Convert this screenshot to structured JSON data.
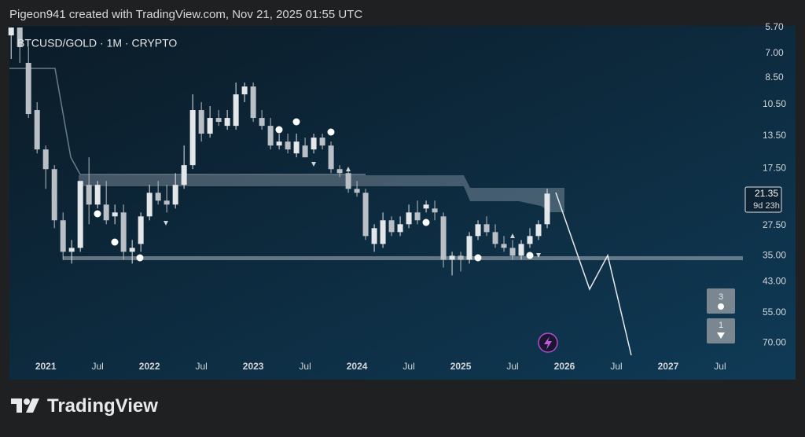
{
  "header": "Pigeon941 created with TradingView.com, Nov 21, 2025 01:55 UTC",
  "brand": "TradingView",
  "chart_data": {
    "type": "candlestick",
    "symbol": "BTCUSD/GOLD · 1M · CRYPTO",
    "log_scale": true,
    "inverted": true,
    "grid": false,
    "up_color": "#e4e7ea",
    "down_color": "#b9bfc5",
    "x": [
      "2020-09",
      "2020-10",
      "2020-11",
      "2020-12",
      "2021-01",
      "2021-02",
      "2021-03",
      "2021-04",
      "2021-05",
      "2021-06",
      "2021-07",
      "2021-08",
      "2021-09",
      "2021-10",
      "2021-11",
      "2021-12",
      "2022-01",
      "2022-02",
      "2022-03",
      "2022-04",
      "2022-05",
      "2022-06",
      "2022-07",
      "2022-08",
      "2022-09",
      "2022-10",
      "2022-11",
      "2022-12",
      "2023-01",
      "2023-02",
      "2023-03",
      "2023-04",
      "2023-05",
      "2023-06",
      "2023-07",
      "2023-08",
      "2023-09",
      "2023-10",
      "2023-11",
      "2023-12",
      "2024-01",
      "2024-02",
      "2024-03",
      "2024-04",
      "2024-05",
      "2024-06",
      "2024-07",
      "2024-08",
      "2024-09",
      "2024-10",
      "2024-11",
      "2024-12",
      "2025-01",
      "2025-02",
      "2025-03",
      "2025-04",
      "2025-05",
      "2025-06",
      "2025-07",
      "2025-08",
      "2025-09",
      "2025-10",
      "2025-11"
    ],
    "open": [
      6.07,
      5.7,
      7.55,
      10.99,
      15.03,
      17.58,
      26.4,
      33.91,
      32.87,
      19.92,
      23.3,
      23.3,
      25.59,
      24.8,
      33.91,
      31.86,
      25.59,
      21.21,
      22.58,
      23.3,
      19.92,
      17.03,
      10.99,
      13.26,
      11.7,
      12.46,
      12.46,
      9.7,
      9.11,
      11.7,
      12.46,
      14.57,
      14.12,
      15.51,
      14.57,
      15.03,
      13.68,
      14.57,
      17.58,
      18.14,
      20.56,
      21.21,
      31.86,
      31.86,
      26.4,
      29.0,
      27.24,
      24.8,
      24.04,
      24.04,
      25.59,
      36.1,
      34.99,
      36.1,
      29.92,
      27.24,
      29.0,
      31.86,
      32.87,
      34.99,
      31.86,
      29.92,
      27.24
    ],
    "high": [
      7.32,
      7.55,
      11.7,
      15.51,
      20.56,
      28.11,
      36.1,
      37.25,
      33.91,
      27.24,
      24.04,
      27.24,
      27.24,
      36.1,
      37.25,
      33.91,
      26.4,
      23.3,
      24.8,
      24.04,
      20.56,
      17.58,
      14.12,
      13.68,
      12.46,
      12.85,
      12.85,
      10.32,
      12.07,
      12.85,
      15.03,
      15.03,
      15.51,
      16.0,
      16.0,
      15.51,
      15.03,
      18.14,
      18.71,
      21.21,
      21.88,
      30.87,
      33.91,
      32.87,
      29.92,
      29.92,
      28.11,
      27.24,
      24.8,
      26.4,
      38.43,
      40.91,
      39.65,
      37.25,
      30.87,
      29.92,
      32.87,
      33.91,
      36.1,
      36.1,
      32.87,
      30.87,
      28.11
    ],
    "low": [
      5.7,
      5.7,
      6.66,
      10.32,
      14.57,
      17.03,
      24.8,
      30.87,
      19.31,
      16.0,
      19.31,
      19.31,
      23.3,
      23.3,
      30.87,
      24.8,
      19.92,
      19.31,
      19.92,
      18.14,
      14.57,
      9.7,
      10.32,
      10.65,
      10.99,
      10.99,
      8.83,
      8.83,
      8.83,
      10.99,
      11.7,
      13.26,
      13.26,
      13.26,
      13.68,
      13.26,
      13.26,
      14.12,
      17.03,
      17.58,
      19.31,
      20.56,
      27.24,
      24.8,
      25.59,
      25.59,
      23.3,
      22.58,
      22.58,
      22.58,
      24.8,
      33.91,
      33.91,
      29.0,
      26.4,
      25.59,
      27.24,
      29.92,
      30.87,
      30.87,
      28.11,
      26.4,
      20.56
    ],
    "close": [
      5.7,
      6.66,
      11.34,
      15.03,
      17.58,
      26.4,
      33.91,
      32.87,
      19.31,
      23.3,
      19.92,
      26.4,
      24.8,
      33.91,
      32.87,
      25.59,
      21.21,
      22.58,
      23.3,
      19.92,
      17.03,
      10.99,
      13.26,
      11.7,
      12.07,
      11.7,
      9.7,
      9.11,
      11.7,
      12.46,
      14.57,
      14.12,
      15.03,
      14.12,
      16.0,
      13.68,
      14.57,
      17.58,
      18.14,
      20.56,
      21.21,
      29.92,
      28.11,
      26.4,
      29.0,
      27.24,
      24.8,
      26.4,
      23.3,
      24.8,
      36.1,
      34.99,
      36.1,
      29.92,
      27.24,
      29.0,
      31.86,
      32.87,
      34.99,
      31.86,
      29.92,
      27.24,
      21.35
    ],
    "countdown": "9d 23h",
    "signal_counts": [
      3,
      1
    ],
    "xlim": [
      2020.65,
      2027.72
    ],
    "xticks": [
      {
        "value": 2021,
        "label": "2021"
      },
      {
        "value": 2021.5,
        "label": "Jul"
      },
      {
        "value": 2022,
        "label": "2022"
      },
      {
        "value": 2022.5,
        "label": "Jul"
      },
      {
        "value": 2023,
        "label": "2023"
      },
      {
        "value": 2023.5,
        "label": "Jul"
      },
      {
        "value": 2024,
        "label": "2024"
      },
      {
        "value": 2024.5,
        "label": "Jul"
      },
      {
        "value": 2025,
        "label": "2025"
      },
      {
        "value": 2025.5,
        "label": "Jul"
      },
      {
        "value": 2026,
        "label": "2026"
      },
      {
        "value": 2026.5,
        "label": "Jul"
      },
      {
        "value": 2027,
        "label": "2027"
      },
      {
        "value": 2027.5,
        "label": "Jul"
      }
    ],
    "ylim": [
      5.63,
      93.7
    ],
    "yticks": [
      {
        "value": 5.7,
        "label": "5.70"
      },
      {
        "value": 7,
        "label": "7.00"
      },
      {
        "value": 8.5,
        "label": "8.50"
      },
      {
        "value": 10.5,
        "label": "10.50"
      },
      {
        "value": 13.5,
        "label": "13.50"
      },
      {
        "value": 17.5,
        "label": "17.50"
      },
      {
        "value": 27.5,
        "label": "27.50"
      },
      {
        "value": 35,
        "label": "35.00"
      },
      {
        "value": 43,
        "label": "43.00"
      },
      {
        "value": 55,
        "label": "55.00"
      },
      {
        "value": 70,
        "label": "70.00"
      }
    ]
  }
}
